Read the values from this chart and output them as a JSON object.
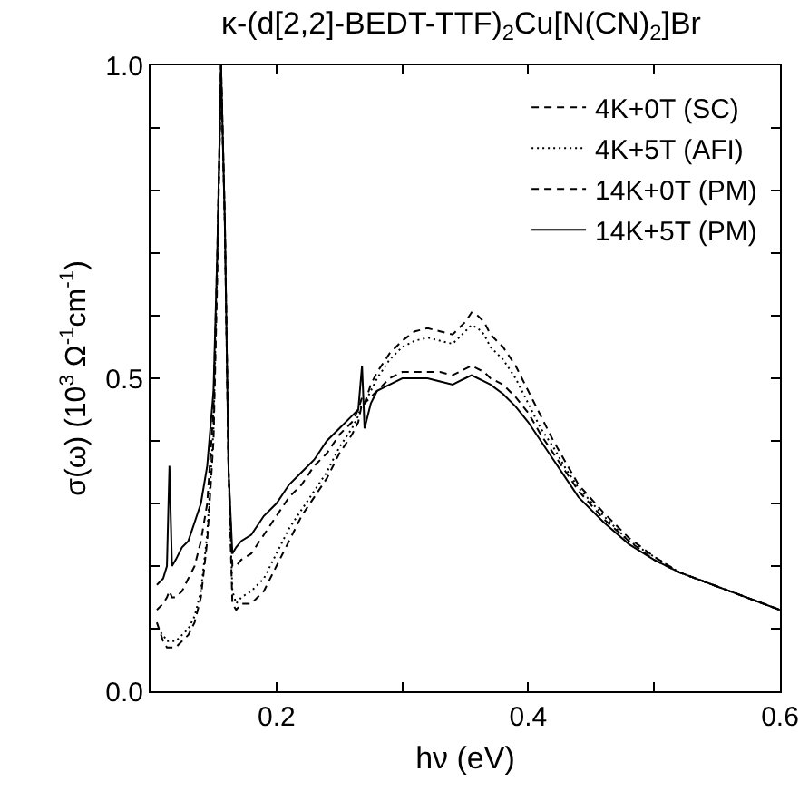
{
  "chart_data": {
    "type": "line",
    "title": "κ-(d[2,2]-BEDT-TTF)$_{2}$Cu[N(CN)$_{2}$]Br",
    "xlabel": "hν (eV)",
    "ylabel": "σ(ω) (10$^{3}$ Ω$^{-1}$cm$^{-1}$)",
    "x": [
      0.105,
      0.11,
      0.113,
      0.115,
      0.117,
      0.12,
      0.125,
      0.13,
      0.135,
      0.14,
      0.145,
      0.15,
      0.153,
      0.156,
      0.159,
      0.162,
      0.165,
      0.168,
      0.172,
      0.18,
      0.19,
      0.2,
      0.21,
      0.22,
      0.23,
      0.24,
      0.25,
      0.26,
      0.265,
      0.268,
      0.27,
      0.275,
      0.28,
      0.29,
      0.3,
      0.31,
      0.32,
      0.33,
      0.34,
      0.35,
      0.355,
      0.36,
      0.365,
      0.37,
      0.38,
      0.39,
      0.4,
      0.41,
      0.42,
      0.43,
      0.44,
      0.46,
      0.48,
      0.5,
      0.52,
      0.54,
      0.56,
      0.58,
      0.6
    ],
    "series": [
      {
        "name": "4K+0T (SC)",
        "color": "#000000",
        "line_style": "dashed",
        "values": [
          0.11,
          0.08,
          0.07,
          0.07,
          0.07,
          0.07,
          0.08,
          0.09,
          0.11,
          0.15,
          0.24,
          0.4,
          0.66,
          1.0,
          0.75,
          0.35,
          0.14,
          0.13,
          0.14,
          0.14,
          0.16,
          0.2,
          0.24,
          0.28,
          0.31,
          0.34,
          0.38,
          0.41,
          0.43,
          0.46,
          0.46,
          0.49,
          0.51,
          0.54,
          0.56,
          0.575,
          0.58,
          0.575,
          0.57,
          0.59,
          0.605,
          0.6,
          0.59,
          0.57,
          0.55,
          0.52,
          0.48,
          0.44,
          0.4,
          0.365,
          0.33,
          0.285,
          0.245,
          0.215,
          0.19,
          0.175,
          0.16,
          0.145,
          0.13
        ]
      },
      {
        "name": "4K+5T (AFI)",
        "color": "#000000",
        "line_style": "dotted",
        "values": [
          0.1,
          0.09,
          0.08,
          0.08,
          0.08,
          0.08,
          0.09,
          0.1,
          0.12,
          0.16,
          0.25,
          0.42,
          0.68,
          1.0,
          0.75,
          0.35,
          0.16,
          0.14,
          0.15,
          0.16,
          0.18,
          0.22,
          0.26,
          0.29,
          0.32,
          0.35,
          0.39,
          0.42,
          0.44,
          0.46,
          0.46,
          0.48,
          0.5,
          0.53,
          0.55,
          0.56,
          0.565,
          0.56,
          0.555,
          0.575,
          0.585,
          0.58,
          0.57,
          0.55,
          0.53,
          0.5,
          0.46,
          0.42,
          0.39,
          0.355,
          0.325,
          0.28,
          0.24,
          0.215,
          0.19,
          0.175,
          0.16,
          0.145,
          0.13
        ]
      },
      {
        "name": "14K+0T (PM)",
        "color": "#000000",
        "line_style": "dashed",
        "values": [
          0.13,
          0.14,
          0.15,
          0.16,
          0.15,
          0.15,
          0.16,
          0.18,
          0.2,
          0.24,
          0.3,
          0.45,
          0.7,
          1.0,
          0.75,
          0.35,
          0.2,
          0.2,
          0.21,
          0.22,
          0.25,
          0.28,
          0.31,
          0.33,
          0.36,
          0.38,
          0.41,
          0.43,
          0.45,
          0.47,
          0.46,
          0.47,
          0.48,
          0.5,
          0.51,
          0.51,
          0.51,
          0.51,
          0.505,
          0.515,
          0.52,
          0.515,
          0.51,
          0.5,
          0.49,
          0.47,
          0.445,
          0.41,
          0.38,
          0.35,
          0.32,
          0.275,
          0.24,
          0.21,
          0.19,
          0.175,
          0.16,
          0.145,
          0.13
        ]
      },
      {
        "name": "14K+5T (PM)",
        "color": "#000000",
        "line_style": "solid",
        "values": [
          0.17,
          0.18,
          0.2,
          0.36,
          0.2,
          0.21,
          0.23,
          0.24,
          0.27,
          0.3,
          0.36,
          0.48,
          0.7,
          1.0,
          0.75,
          0.35,
          0.22,
          0.23,
          0.24,
          0.25,
          0.28,
          0.3,
          0.33,
          0.35,
          0.37,
          0.4,
          0.42,
          0.44,
          0.45,
          0.52,
          0.42,
          0.46,
          0.48,
          0.49,
          0.5,
          0.5,
          0.5,
          0.495,
          0.49,
          0.5,
          0.505,
          0.5,
          0.495,
          0.49,
          0.475,
          0.455,
          0.43,
          0.4,
          0.37,
          0.34,
          0.31,
          0.27,
          0.235,
          0.21,
          0.19,
          0.175,
          0.16,
          0.145,
          0.13
        ]
      }
    ],
    "xlim": [
      0.1,
      0.6
    ],
    "xticks": [
      0.2,
      {
        "value": 0.3,
        "label": null
      },
      0.4,
      {
        "value": 0.5,
        "label": null
      },
      0.6
    ],
    "ylim": [
      0,
      1
    ],
    "yticks": [
      {
        "value": 0,
        "label": "0.0"
      },
      {
        "value": 0.1,
        "label": null
      },
      {
        "value": 0.2,
        "label": null
      },
      {
        "value": 0.3,
        "label": null
      },
      {
        "value": 0.4,
        "label": null
      },
      0.5,
      {
        "value": 0.6,
        "label": null
      },
      {
        "value": 0.7,
        "label": null
      },
      {
        "value": 0.8,
        "label": null
      },
      {
        "value": 0.9,
        "label": null
      },
      {
        "value": 1,
        "label": "1.0"
      }
    ],
    "grid": false,
    "legend": "top right"
  }
}
